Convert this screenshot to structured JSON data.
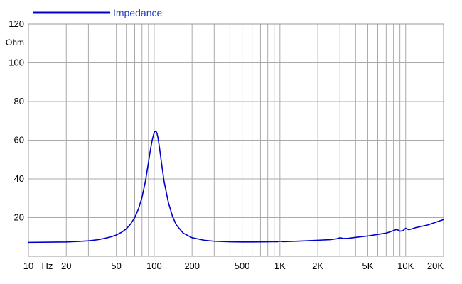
{
  "chart_data": {
    "type": "line",
    "title": "",
    "xlabel": "",
    "ylabel": "",
    "x_unit": "Hz",
    "y_unit": "Ohm",
    "x_scale": "log",
    "xlim": [
      10,
      20000
    ],
    "ylim": [
      0,
      120
    ],
    "grid": true,
    "legend": "top-left",
    "colors": {
      "series": "#0000cc",
      "legend_text": "#1f3fbf",
      "grid": "#aaaaaa",
      "frame": "#999999"
    },
    "y_ticks": [
      {
        "value": 20,
        "label": "20"
      },
      {
        "value": 40,
        "label": "40"
      },
      {
        "value": 60,
        "label": "60"
      },
      {
        "value": 80,
        "label": "80"
      },
      {
        "value": 100,
        "label": "100"
      },
      {
        "value": 120,
        "label": "120"
      }
    ],
    "x_ticks": [
      {
        "value": 10,
        "label": "10"
      },
      {
        "value": 20,
        "label": "20"
      },
      {
        "value": 50,
        "label": "50"
      },
      {
        "value": 100,
        "label": "100"
      },
      {
        "value": 200,
        "label": "200"
      },
      {
        "value": 500,
        "label": "500"
      },
      {
        "value": 1000,
        "label": "1K"
      },
      {
        "value": 2000,
        "label": "2K"
      },
      {
        "value": 5000,
        "label": "5K"
      },
      {
        "value": 10000,
        "label": "10K"
      },
      {
        "value": 20000,
        "label": "20K"
      }
    ],
    "x_gridlines": [
      10,
      20,
      30,
      40,
      50,
      60,
      70,
      80,
      90,
      100,
      200,
      300,
      400,
      500,
      600,
      700,
      800,
      900,
      1000,
      2000,
      3000,
      4000,
      5000,
      6000,
      7000,
      8000,
      9000,
      10000,
      20000
    ],
    "series": [
      {
        "name": "Impedance",
        "x": [
          10,
          15,
          20,
          25,
          30,
          35,
          40,
          45,
          50,
          55,
          60,
          65,
          70,
          75,
          80,
          85,
          90,
          93,
          96,
          99,
          101,
          103,
          105,
          107,
          110,
          115,
          120,
          130,
          140,
          150,
          170,
          200,
          250,
          300,
          400,
          500,
          600,
          800,
          900,
          950,
          1000,
          1050,
          1100,
          1200,
          1500,
          2000,
          2500,
          2800,
          3000,
          3200,
          3500,
          4000,
          5000,
          6000,
          7000,
          7500,
          8000,
          8500,
          9000,
          9500,
          10000,
          10500,
          11000,
          12000,
          15000,
          20000
        ],
        "y": [
          7.2,
          7.3,
          7.4,
          7.7,
          8.0,
          8.5,
          9.2,
          10.0,
          11.0,
          12.4,
          14.2,
          16.7,
          20.0,
          24.5,
          30.5,
          38.5,
          48.5,
          54.5,
          59.5,
          63.0,
          64.5,
          64.8,
          63.8,
          61.5,
          56.5,
          47.0,
          38.5,
          27.5,
          20.5,
          16.2,
          12.0,
          9.6,
          8.3,
          7.8,
          7.5,
          7.4,
          7.4,
          7.5,
          7.6,
          7.5,
          7.8,
          7.6,
          7.6,
          7.7,
          7.9,
          8.3,
          8.6,
          9.0,
          9.6,
          9.2,
          9.3,
          9.8,
          10.5,
          11.3,
          12.0,
          12.6,
          13.3,
          13.9,
          13.0,
          13.2,
          14.5,
          13.8,
          14.0,
          14.8,
          16.2,
          19.0
        ]
      }
    ]
  }
}
